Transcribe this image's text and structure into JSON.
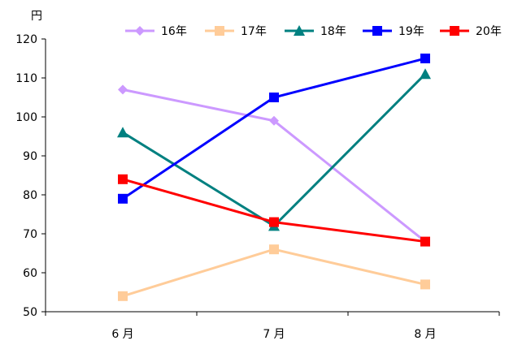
{
  "chart_data": {
    "type": "line",
    "title": "",
    "xlabel": "",
    "ylabel": "円",
    "categories": [
      "6 月",
      "7 月",
      "8 月"
    ],
    "ylim": [
      50,
      120
    ],
    "yticks": [
      50,
      60,
      70,
      80,
      90,
      100,
      110,
      120
    ],
    "grid": false,
    "legend_position": "top-right",
    "series": [
      {
        "name": "16年",
        "color": "#cc99ff",
        "marker": "diamond",
        "values": [
          107,
          99,
          68
        ]
      },
      {
        "name": "17年",
        "color": "#ffcc99",
        "marker": "square",
        "values": [
          54,
          66,
          57
        ]
      },
      {
        "name": "18年",
        "color": "#008080",
        "marker": "triangle",
        "values": [
          96,
          72,
          111
        ]
      },
      {
        "name": "19年",
        "color": "#0000ff",
        "marker": "square",
        "values": [
          79,
          105,
          115
        ]
      },
      {
        "name": "20年",
        "color": "#ff0000",
        "marker": "square",
        "values": [
          84,
          73,
          68
        ]
      }
    ]
  }
}
